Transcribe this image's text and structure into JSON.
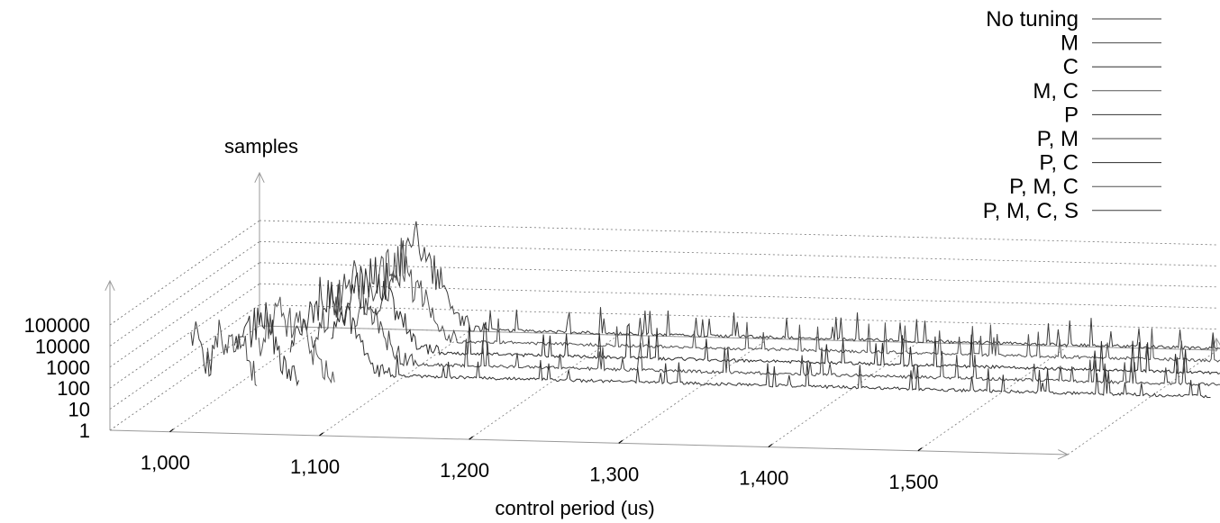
{
  "chart_data": {
    "type": "line",
    "title": "",
    "xlabel": "control period (us)",
    "zlabel": "samples",
    "z_scale": "log",
    "z_ticks": [
      "1",
      "10",
      "100",
      "1000",
      "10000",
      "100000"
    ],
    "z_tick_values": [
      1,
      10,
      100,
      1000,
      10000,
      100000
    ],
    "x_ticks": [
      "1,000",
      "1,100",
      "1,200",
      "1,300",
      "1,400",
      "1,500"
    ],
    "x_tick_values": [
      1000,
      1100,
      1200,
      1300,
      1400,
      1500
    ],
    "xlim": [
      960,
      1600
    ],
    "zlim": [
      1,
      100000
    ],
    "grid": true,
    "legend_position": "top-right",
    "series": [
      {
        "name": "No tuning",
        "x_min": 1003,
        "x_max": 1018,
        "peak_x": 1007,
        "peak": 40000,
        "spike_mean": 3
      },
      {
        "name": "M",
        "x_min": 1003,
        "x_max": 1036,
        "peak_x": 1016,
        "peak": 30000,
        "spike_mean": 4
      },
      {
        "name": "C",
        "x_min": 1010,
        "x_max": 1053,
        "peak_x": 1025,
        "peak": 50000,
        "spike_mean": 6
      },
      {
        "name": "M, C",
        "x_min": 1015,
        "x_max": 1066,
        "peak_x": 1032,
        "peak": 60000,
        "spike_mean": 10
      },
      {
        "name": "P",
        "x_min": 1025,
        "x_max": 1640,
        "peak_x": 1050,
        "peak": 80000,
        "spike_mean": 3
      },
      {
        "name": "P, M",
        "x_min": 1028,
        "x_max": 1650,
        "peak_x": 1055,
        "peak": 90000,
        "spike_mean": 4
      },
      {
        "name": "P, C",
        "x_min": 1030,
        "x_max": 1650,
        "peak_x": 1058,
        "peak": 60000,
        "spike_mean": 8
      },
      {
        "name": "P, M, C",
        "x_min": 1035,
        "x_max": 1650,
        "peak_x": 1062,
        "peak": 100000,
        "spike_mean": 6
      },
      {
        "name": "P, M, C, S",
        "x_min": 1035,
        "x_max": 1650,
        "peak_x": 1065,
        "peak": 100000,
        "spike_mean": 4
      }
    ]
  }
}
